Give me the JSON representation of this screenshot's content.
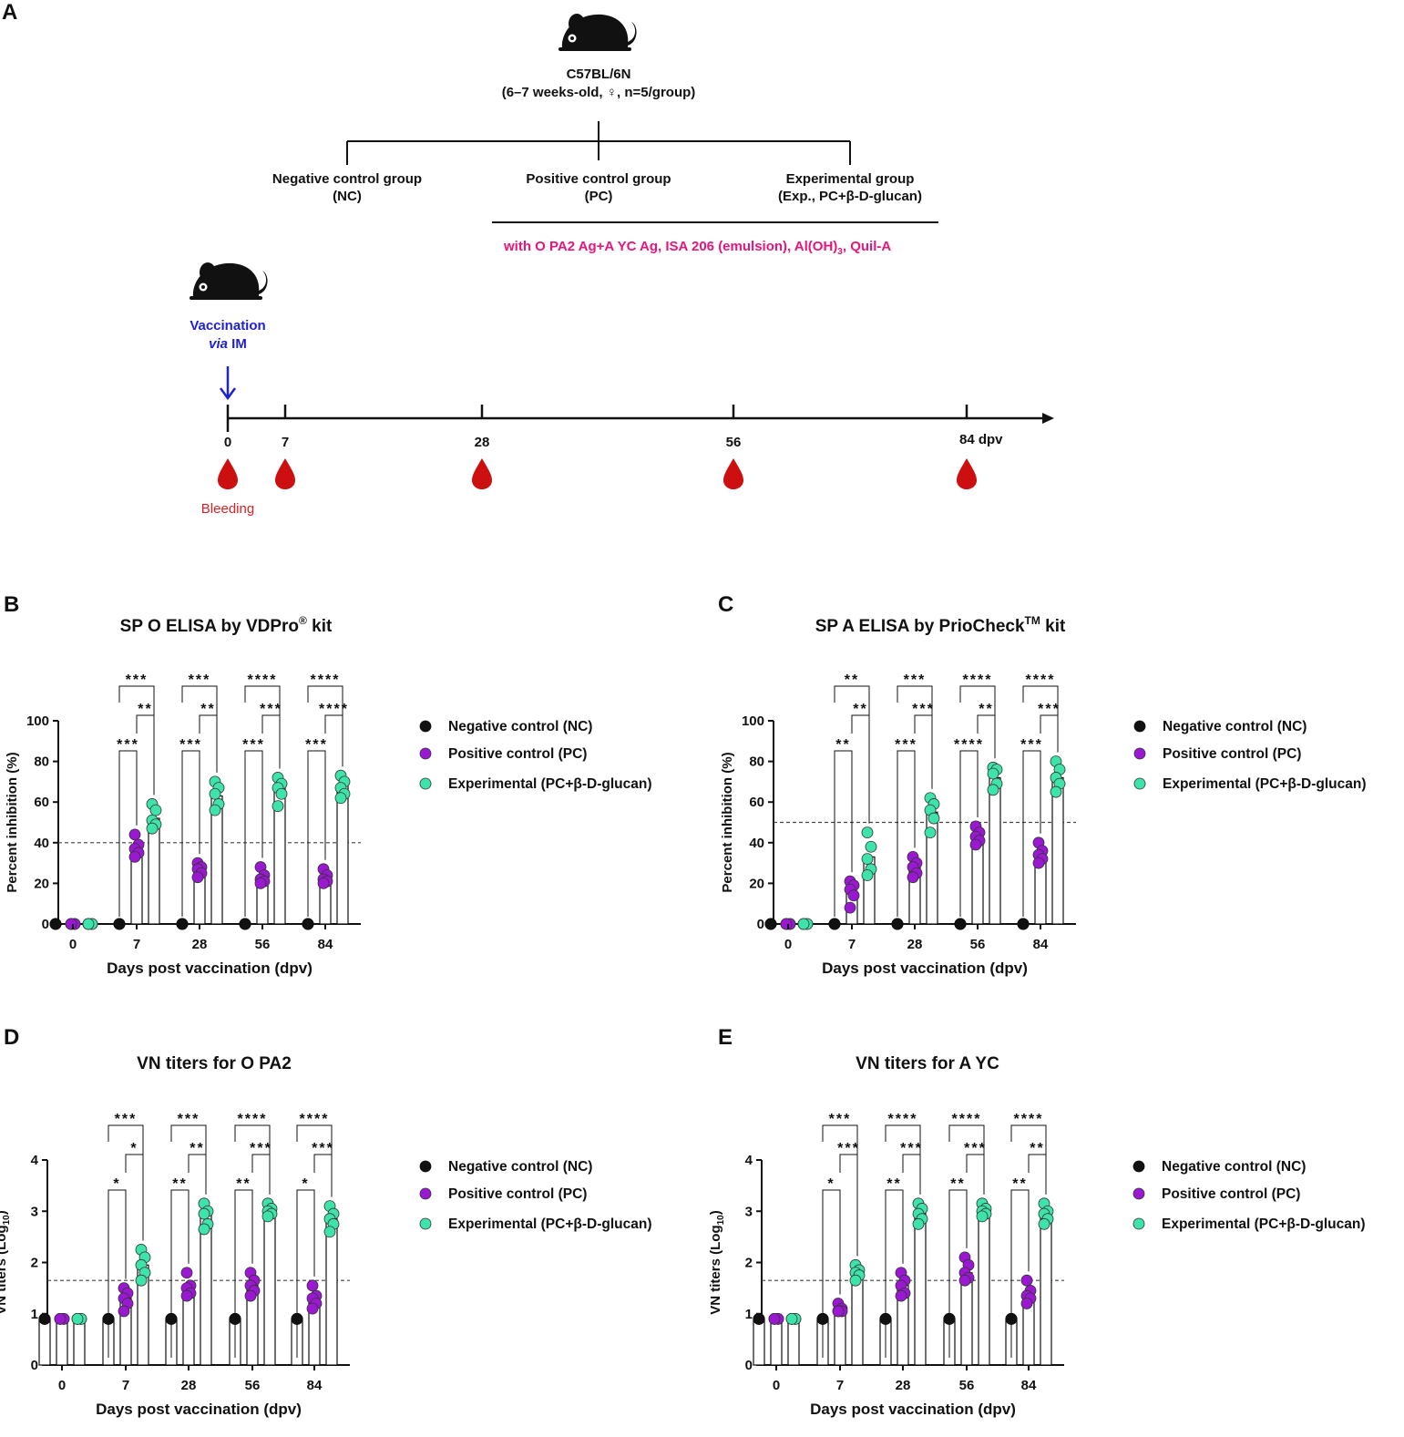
{
  "design": {
    "panel_label": "A",
    "mouse_strain": "C57BL/6N",
    "mouse_desc": "(6–7 weeks-old, ♀, n=5/group)",
    "groups": [
      {
        "line1": "Negative control group",
        "line2": "(NC)"
      },
      {
        "line1": "Positive control group",
        "line2": "(PC)"
      },
      {
        "line1": "Experimental group",
        "line2": "(Exp., PC+β-D-glucan)"
      }
    ],
    "formulation_main": "with O PA2 Ag+A YC Ag, ISA 206 (emulsion), Al(OH)",
    "formulation_sub": "3",
    "formulation_tail": ", Quil-A",
    "vaccination_line1": "Vaccination",
    "vaccination_via": "via",
    "vaccination_route": " IM",
    "timeline_labels": [
      "0",
      "7",
      "28",
      "56",
      "84 dpv"
    ],
    "bleeding_label": "Bleeding"
  },
  "colors": {
    "nc": "#111111",
    "pc": "#9b18d2",
    "exp": "#3de3a9",
    "pink": "#e8157a",
    "blue": "#1f1fd6",
    "blood": "#cc1010"
  },
  "legend": [
    "Negative control (NC)",
    "Positive control (PC)",
    "Experimental (PC+β-D-glucan)"
  ],
  "chart_data": [
    {
      "letter": "B",
      "type": "bar",
      "title": "SP O ELISA by VDPro",
      "title_sup": "®",
      "title_tail": " kit",
      "xlabel": "Days post vaccination (dpv)",
      "ylabel": "Percent inhibition (%)",
      "ylim": [
        0,
        100
      ],
      "yticks": [
        0,
        20,
        40,
        60,
        80,
        100
      ],
      "cutoff": 40,
      "categories": [
        "0",
        "7",
        "28",
        "56",
        "84"
      ],
      "series": [
        {
          "name": "Negative control (NC)",
          "values": [
            0,
            0,
            0,
            0,
            0
          ]
        },
        {
          "name": "Positive control (PC)",
          "values": [
            0,
            38,
            28,
            23,
            23
          ]
        },
        {
          "name": "Experimental (PC+β-D-glucan)",
          "values": [
            0,
            52,
            63,
            67,
            68
          ]
        }
      ],
      "points": [
        [
          [
            0,
            0,
            0,
            0,
            0
          ],
          [
            0,
            0,
            0,
            0,
            0
          ],
          [
            0,
            0,
            0,
            0,
            0
          ]
        ],
        [
          [
            0,
            0,
            0,
            0,
            0
          ],
          [
            44,
            39,
            37,
            35,
            33
          ],
          [
            59,
            56,
            51,
            49,
            47
          ]
        ],
        [
          [
            0,
            0,
            0,
            0,
            0
          ],
          [
            30,
            28,
            27,
            25,
            23
          ],
          [
            70,
            67,
            64,
            59,
            56
          ]
        ],
        [
          [
            0,
            0,
            0,
            0,
            0
          ],
          [
            28,
            24,
            22,
            21,
            20
          ],
          [
            72,
            69,
            67,
            64,
            58
          ]
        ],
        [
          [
            0,
            0,
            0,
            0,
            0
          ],
          [
            27,
            24,
            22,
            21,
            20
          ],
          [
            73,
            70,
            67,
            64,
            62
          ]
        ]
      ],
      "sig_nc_exp": [
        "***",
        "***",
        "****",
        "****"
      ],
      "sig_pc_exp": [
        "**",
        "**",
        "***",
        "****"
      ],
      "sig_nc_pc": [
        "***",
        "***",
        "***",
        "***"
      ]
    },
    {
      "letter": "C",
      "type": "bar",
      "title": "SP A ELISA by PrioCheck",
      "title_sup": "TM",
      "title_tail": " kit",
      "xlabel": "Days post vaccination (dpv)",
      "ylabel": "Percent inhibition (%)",
      "ylim": [
        0,
        100
      ],
      "yticks": [
        0,
        20,
        40,
        60,
        80,
        100
      ],
      "cutoff": 50,
      "categories": [
        "0",
        "7",
        "28",
        "56",
        "84"
      ],
      "series": [
        {
          "name": "Negative control (NC)",
          "values": [
            0,
            0,
            0,
            0,
            0
          ]
        },
        {
          "name": "Positive control (PC)",
          "values": [
            0,
            16,
            28,
            43,
            34
          ]
        },
        {
          "name": "Experimental (PC+β-D-glucan)",
          "values": [
            0,
            33,
            55,
            72,
            72
          ]
        }
      ],
      "points": [
        [
          [
            0,
            0,
            0,
            0,
            0
          ],
          [
            0,
            0,
            0,
            0,
            0
          ],
          [
            0,
            0,
            0,
            0,
            0
          ]
        ],
        [
          [
            0,
            0,
            0,
            0,
            0
          ],
          [
            21,
            19,
            17,
            14,
            8
          ],
          [
            45,
            38,
            32,
            27,
            24
          ]
        ],
        [
          [
            0,
            0,
            0,
            0,
            0
          ],
          [
            33,
            30,
            28,
            25,
            23
          ],
          [
            62,
            59,
            56,
            52,
            45
          ]
        ],
        [
          [
            0,
            0,
            0,
            0,
            0
          ],
          [
            48,
            45,
            43,
            41,
            39
          ],
          [
            77,
            76,
            74,
            69,
            66
          ]
        ],
        [
          [
            0,
            0,
            0,
            0,
            0
          ],
          [
            40,
            36,
            34,
            32,
            30
          ],
          [
            80,
            76,
            72,
            69,
            65
          ]
        ]
      ],
      "sig_nc_exp": [
        "**",
        "***",
        "****",
        "****"
      ],
      "sig_pc_exp": [
        "**",
        "***",
        "**",
        "***"
      ],
      "sig_nc_pc": [
        "**",
        "***",
        "****",
        "***"
      ]
    },
    {
      "letter": "D",
      "type": "bar",
      "title": "VN titers for O PA2",
      "title_sup": "",
      "title_tail": "",
      "xlabel": "Days post vaccination (dpv)",
      "ylabel": "VN titers (Log",
      "ylabel_sub": "10",
      "ylabel_tail": ")",
      "ylim": [
        0,
        4
      ],
      "yticks": [
        0,
        1,
        2,
        3,
        4
      ],
      "cutoff": 1.65,
      "categories": [
        "0",
        "7",
        "28",
        "56",
        "84"
      ],
      "series": [
        {
          "name": "Negative control (NC)",
          "values": [
            0.9,
            0.9,
            0.9,
            0.9,
            0.9
          ]
        },
        {
          "name": "Positive control (PC)",
          "values": [
            0.9,
            1.3,
            1.5,
            1.55,
            1.3
          ]
        },
        {
          "name": "Experimental (PC+β-D-glucan)",
          "values": [
            0.9,
            1.95,
            2.95,
            3.0,
            2.85
          ]
        }
      ],
      "points": [
        [
          [
            0.9,
            0.9,
            0.9,
            0.9,
            0.9
          ],
          [
            0.9,
            0.9,
            0.9,
            0.9,
            0.9
          ],
          [
            0.9,
            0.9,
            0.9,
            0.9,
            0.9
          ]
        ],
        [
          [
            0.9,
            0.9,
            0.9,
            0.9,
            0.9
          ],
          [
            1.5,
            1.4,
            1.3,
            1.2,
            1.05
          ],
          [
            2.25,
            2.1,
            1.95,
            1.8,
            1.65
          ]
        ],
        [
          [
            0.9,
            0.9,
            0.9,
            0.9,
            0.9
          ],
          [
            1.8,
            1.55,
            1.5,
            1.4,
            1.35
          ],
          [
            3.15,
            3.0,
            2.95,
            2.75,
            2.65
          ]
        ],
        [
          [
            0.9,
            0.9,
            0.9,
            0.9,
            0.9
          ],
          [
            1.8,
            1.65,
            1.55,
            1.45,
            1.35
          ],
          [
            3.15,
            3.05,
            3.0,
            2.95,
            2.9
          ]
        ],
        [
          [
            0.9,
            0.9,
            0.9,
            0.9,
            0.9
          ],
          [
            1.55,
            1.35,
            1.3,
            1.2,
            1.1
          ],
          [
            3.1,
            2.95,
            2.85,
            2.75,
            2.6
          ]
        ]
      ],
      "sig_nc_exp": [
        "***",
        "***",
        "****",
        "****"
      ],
      "sig_pc_exp": [
        "*",
        "**",
        "***",
        "***"
      ],
      "sig_nc_pc": [
        "*",
        "**",
        "**",
        "*"
      ]
    },
    {
      "letter": "E",
      "type": "bar",
      "title": "VN titers for A YC",
      "title_sup": "",
      "title_tail": "",
      "xlabel": "Days post vaccination (dpv)",
      "ylabel": "VN titers (Log",
      "ylabel_sub": "10",
      "ylabel_tail": ")",
      "ylim": [
        0,
        4
      ],
      "yticks": [
        0,
        1,
        2,
        3,
        4
      ],
      "cutoff": 1.65,
      "categories": [
        "0",
        "7",
        "28",
        "56",
        "84"
      ],
      "series": [
        {
          "name": "Negative control (NC)",
          "values": [
            0.9,
            0.9,
            0.9,
            0.9,
            0.9
          ]
        },
        {
          "name": "Positive control (PC)",
          "values": [
            0.9,
            1.1,
            1.55,
            1.8,
            1.4
          ]
        },
        {
          "name": "Experimental (PC+β-D-glucan)",
          "values": [
            0.9,
            1.8,
            2.95,
            3.0,
            2.95
          ]
        }
      ],
      "points": [
        [
          [
            0.9,
            0.9,
            0.9,
            0.9,
            0.9
          ],
          [
            0.9,
            0.9,
            0.9,
            0.9,
            0.9
          ],
          [
            0.9,
            0.9,
            0.9,
            0.9,
            0.9
          ]
        ],
        [
          [
            0.9,
            0.9,
            0.9,
            0.9,
            0.9
          ],
          [
            1.2,
            1.1,
            1.05,
            1.05,
            1.05
          ],
          [
            1.95,
            1.85,
            1.8,
            1.75,
            1.65
          ]
        ],
        [
          [
            0.9,
            0.9,
            0.9,
            0.9,
            0.9
          ],
          [
            1.8,
            1.65,
            1.55,
            1.4,
            1.35
          ],
          [
            3.15,
            3.05,
            2.95,
            2.85,
            2.75
          ]
        ],
        [
          [
            0.9,
            0.9,
            0.9,
            0.9,
            0.9
          ],
          [
            2.1,
            1.95,
            1.8,
            1.7,
            1.65
          ],
          [
            3.15,
            3.05,
            3.0,
            2.95,
            2.9
          ]
        ],
        [
          [
            0.9,
            0.9,
            0.9,
            0.9,
            0.9
          ],
          [
            1.65,
            1.45,
            1.35,
            1.3,
            1.2
          ],
          [
            3.15,
            3.0,
            2.95,
            2.85,
            2.75
          ]
        ]
      ],
      "sig_nc_exp": [
        "***",
        "****",
        "****",
        "****"
      ],
      "sig_pc_exp": [
        "***",
        "***",
        "***",
        "**"
      ],
      "sig_nc_pc": [
        "*",
        "**",
        "**",
        "**"
      ]
    }
  ]
}
